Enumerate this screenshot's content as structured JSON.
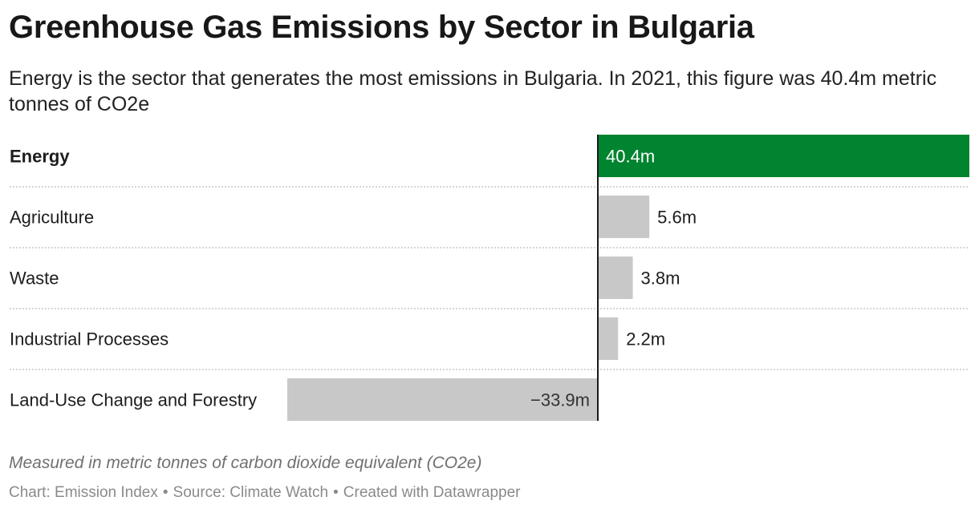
{
  "title": "Greenhouse Gas Emissions by Sector in Bulgaria",
  "subtitle": "Energy is the sector that generates the most emissions in Bulgaria. In 2021, this figure was 40.4m metric tonnes of CO2e",
  "notes": "Measured in metric tonnes of carbon dioxide equivalent (CO2e)",
  "footer": {
    "chart": "Chart: Emission Index",
    "source": "Source: Climate Watch",
    "created": "Created with Datawrapper",
    "separator": "•"
  },
  "colors": {
    "highlight": "#00842f",
    "bar": "#c8c8c8",
    "axis": "#1a1a1a",
    "divider": "#c9c9c9"
  },
  "chart_data": {
    "type": "bar",
    "orientation": "horizontal",
    "unit": "million metric tonnes CO2e",
    "categories": [
      "Energy",
      "Agriculture",
      "Waste",
      "Industrial Processes",
      "Land-Use Change and Forestry"
    ],
    "values": [
      40.4,
      5.6,
      3.8,
      2.2,
      -33.9
    ],
    "labels": [
      "40.4m",
      "5.6m",
      "3.8m",
      "2.2m",
      "−33.9m"
    ],
    "highlighted": "Energy",
    "xlim": [
      -33.9,
      40.4
    ],
    "grid": false
  }
}
